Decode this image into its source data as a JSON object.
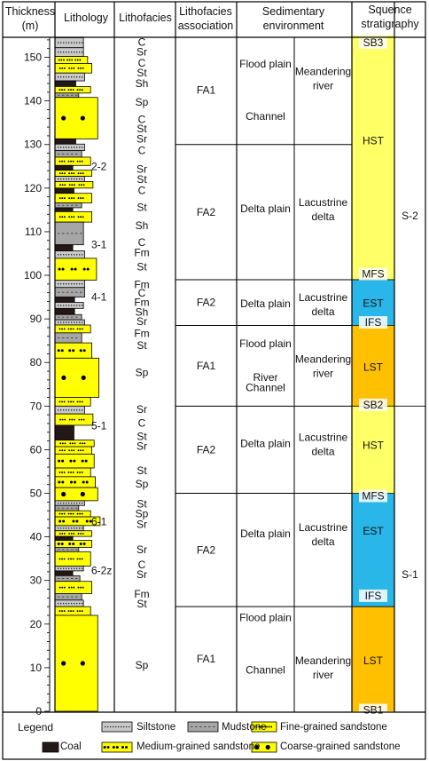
{
  "headers": {
    "thickness": [
      "Thickness",
      "(m)"
    ],
    "lithology": "Lithology",
    "lithofacies": "Lithofacies",
    "association": [
      "Lithofacies",
      "association"
    ],
    "environment": [
      "Sedimentary",
      "environment"
    ],
    "sequence": [
      "Squence",
      "stratigraphy"
    ]
  },
  "axis": {
    "min": 0,
    "max": 155,
    "major_ticks": [
      0,
      10,
      20,
      30,
      40,
      50,
      60,
      70,
      80,
      90,
      100,
      110,
      120,
      130,
      140,
      150
    ]
  },
  "colors": {
    "sand": "#ffff00",
    "hst": "#ffff66",
    "est": "#29b6e8",
    "lst": "#ffc000",
    "mud": "#a6a6a6",
    "silt": "#c8c8c8",
    "coal": "#231815"
  },
  "lithology_beds": [
    {
      "top": 154.5,
      "bot": 152.2,
      "type": "silt",
      "w": 0.48
    },
    {
      "top": 152.2,
      "bot": 150.2,
      "type": "silt",
      "w": 0.48
    },
    {
      "top": 150.2,
      "bot": 148.6,
      "type": "fine",
      "w": 0.55
    },
    {
      "top": 148.6,
      "bot": 146.4,
      "type": "fine",
      "w": 0.62
    },
    {
      "top": 146.4,
      "bot": 144.6,
      "type": "silt",
      "w": 0.5
    },
    {
      "top": 144.6,
      "bot": 143.3,
      "type": "coal",
      "w": 0.35
    },
    {
      "top": 143.3,
      "bot": 141.8,
      "type": "fine",
      "w": 0.6
    },
    {
      "top": 141.8,
      "bot": 140.8,
      "type": "mud",
      "w": 0.4
    },
    {
      "top": 140.8,
      "bot": 131.3,
      "type": "coarse",
      "w": 0.72
    },
    {
      "top": 131.3,
      "bot": 130.1,
      "type": "coal",
      "w": 0.35
    },
    {
      "top": 130.1,
      "bot": 128.6,
      "type": "silt",
      "w": 0.5
    },
    {
      "top": 128.6,
      "bot": 127.1,
      "type": "mud",
      "w": 0.45
    },
    {
      "top": 127.1,
      "bot": 125.2,
      "type": "fine",
      "w": 0.6
    },
    {
      "top": 125.2,
      "bot": 124.1,
      "type": "coal",
      "w": 0.3
    },
    {
      "top": 124.1,
      "bot": 122.7,
      "type": "fine",
      "w": 0.62
    },
    {
      "top": 122.7,
      "bot": 121.5,
      "type": "silt",
      "w": 0.5
    },
    {
      "top": 121.5,
      "bot": 120.0,
      "type": "fine",
      "w": 0.64
    },
    {
      "top": 120.0,
      "bot": 118.8,
      "type": "coal",
      "w": 0.32
    },
    {
      "top": 118.8,
      "bot": 116.6,
      "type": "fine",
      "w": 0.62
    },
    {
      "top": 116.6,
      "bot": 115.5,
      "type": "mud",
      "w": 0.45
    },
    {
      "top": 115.5,
      "bot": 114.6,
      "type": "coal",
      "w": 0.3
    },
    {
      "top": 114.6,
      "bot": 112.2,
      "type": "fine",
      "w": 0.62
    },
    {
      "top": 112.2,
      "bot": 107.0,
      "type": "mud",
      "w": 0.48
    },
    {
      "top": 107.0,
      "bot": 105.6,
      "type": "coal",
      "w": 0.3
    },
    {
      "top": 105.6,
      "bot": 103.9,
      "type": "silt",
      "w": 0.5
    },
    {
      "top": 103.9,
      "bot": 98.9,
      "type": "medium",
      "w": 0.7
    },
    {
      "top": 98.9,
      "bot": 97.2,
      "type": "silt",
      "w": 0.5
    },
    {
      "top": 97.2,
      "bot": 95.0,
      "type": "mud",
      "w": 0.5
    },
    {
      "top": 95.0,
      "bot": 93.8,
      "type": "coal",
      "w": 0.33
    },
    {
      "top": 93.8,
      "bot": 92.4,
      "type": "silt",
      "w": 0.48
    },
    {
      "top": 92.4,
      "bot": 91.0,
      "type": "coal",
      "w": 0.33
    },
    {
      "top": 91.0,
      "bot": 89.8,
      "type": "mud",
      "w": 0.45
    },
    {
      "top": 89.8,
      "bot": 88.6,
      "type": "silt",
      "w": 0.5
    },
    {
      "top": 88.6,
      "bot": 86.8,
      "type": "fine",
      "w": 0.6
    },
    {
      "top": 86.8,
      "bot": 84.5,
      "type": "mud",
      "w": 0.45
    },
    {
      "top": 84.5,
      "bot": 81.0,
      "type": "medium",
      "w": 0.62
    },
    {
      "top": 81.0,
      "bot": 72.0,
      "type": "coarse",
      "w": 0.74
    },
    {
      "top": 72.0,
      "bot": 70.0,
      "type": "fine",
      "w": 0.6
    },
    {
      "top": 70.0,
      "bot": 68.2,
      "type": "silt",
      "w": 0.5
    },
    {
      "top": 68.2,
      "bot": 65.6,
      "type": "fine",
      "w": 0.64
    },
    {
      "top": 65.6,
      "bot": 62.2,
      "type": "coal",
      "w": 0.32
    },
    {
      "top": 62.2,
      "bot": 60.7,
      "type": "fine",
      "w": 0.66
    },
    {
      "top": 60.7,
      "bot": 59.0,
      "type": "fine",
      "w": 0.62
    },
    {
      "top": 59.0,
      "bot": 55.8,
      "type": "medium",
      "w": 0.66
    },
    {
      "top": 55.8,
      "bot": 53.8,
      "type": "fine",
      "w": 0.6
    },
    {
      "top": 53.8,
      "bot": 51.3,
      "type": "medium",
      "w": 0.68
    },
    {
      "top": 51.3,
      "bot": 48.3,
      "type": "coarse",
      "w": 0.72
    },
    {
      "top": 48.3,
      "bot": 47.2,
      "type": "silt",
      "w": 0.5
    },
    {
      "top": 47.2,
      "bot": 46.0,
      "type": "mud",
      "w": 0.4
    },
    {
      "top": 46.0,
      "bot": 44.6,
      "type": "fine",
      "w": 0.6
    },
    {
      "top": 44.6,
      "bot": 42.6,
      "type": "medium",
      "w": 0.76
    },
    {
      "top": 42.6,
      "bot": 41.4,
      "type": "silt",
      "w": 0.48
    },
    {
      "top": 41.4,
      "bot": 40.1,
      "type": "fine",
      "w": 0.62
    },
    {
      "top": 40.1,
      "bot": 39.2,
      "type": "coal",
      "w": 0.3
    },
    {
      "top": 39.2,
      "bot": 37.6,
      "type": "medium",
      "w": 0.62
    },
    {
      "top": 37.6,
      "bot": 36.6,
      "type": "mud",
      "w": 0.4
    },
    {
      "top": 36.6,
      "bot": 33.3,
      "type": "fine",
      "w": 0.6
    },
    {
      "top": 33.3,
      "bot": 32.2,
      "type": "silt",
      "w": 0.48
    },
    {
      "top": 32.2,
      "bot": 31.1,
      "type": "coal",
      "w": 0.3
    },
    {
      "top": 31.1,
      "bot": 29.8,
      "type": "mud",
      "w": 0.42
    },
    {
      "top": 29.8,
      "bot": 27.0,
      "type": "fine",
      "w": 0.62
    },
    {
      "top": 27.0,
      "bot": 25.5,
      "type": "mud",
      "w": 0.45
    },
    {
      "top": 25.5,
      "bot": 24.0,
      "type": "silt",
      "w": 0.48
    },
    {
      "top": 24.0,
      "bot": 22.0,
      "type": "fine",
      "w": 0.6
    },
    {
      "top": 22.0,
      "bot": 0.0,
      "type": "coarse",
      "w": 0.72
    }
  ],
  "sample_labels": [
    {
      "text": "2-2",
      "at": 125.0
    },
    {
      "text": "3-1",
      "at": 107.0
    },
    {
      "text": "4-1",
      "at": 95.0
    },
    {
      "text": "5-1",
      "at": 65.5
    },
    {
      "text": "6-1",
      "at": 43.5
    },
    {
      "text": "6-2z",
      "at": 32.3
    }
  ],
  "lithofacies": [
    {
      "text": "C",
      "at": 153.5
    },
    {
      "text": "Sr",
      "at": 151.2
    },
    {
      "text": "C",
      "at": 148.7
    },
    {
      "text": "St",
      "at": 146.4
    },
    {
      "text": "Sh",
      "at": 144.0
    },
    {
      "text": "Sp",
      "at": 139.7
    },
    {
      "text": "C",
      "at": 135.8
    },
    {
      "text": "St",
      "at": 133.6
    },
    {
      "text": "Sr",
      "at": 131.3
    },
    {
      "text": "C",
      "at": 128.6
    },
    {
      "text": "Sr",
      "at": 124.3
    },
    {
      "text": "St",
      "at": 122.0
    },
    {
      "text": "C",
      "at": 119.5
    },
    {
      "text": "St",
      "at": 115.6
    },
    {
      "text": "Sh",
      "at": 111.4
    },
    {
      "text": "C",
      "at": 107.5
    },
    {
      "text": "Fm",
      "at": 105.2
    },
    {
      "text": "St",
      "at": 101.9
    },
    {
      "text": "Fm",
      "at": 97.9
    },
    {
      "text": "C",
      "at": 95.9
    },
    {
      "text": "Fm",
      "at": 93.8
    },
    {
      "text": "Sh",
      "at": 91.6
    },
    {
      "text": "Sr",
      "at": 89.4
    },
    {
      "text": "Fm",
      "at": 86.7
    },
    {
      "text": "St",
      "at": 83.9
    },
    {
      "text": "Sp",
      "at": 77.7
    },
    {
      "text": "Sr",
      "at": 69.3
    },
    {
      "text": "C",
      "at": 66.1
    },
    {
      "text": "St",
      "at": 63.0
    },
    {
      "text": "Sr",
      "at": 60.8
    },
    {
      "text": "St",
      "at": 55.2
    },
    {
      "text": "Sp",
      "at": 52.1
    },
    {
      "text": "St",
      "at": 47.6
    },
    {
      "text": "Sp",
      "at": 45.3
    },
    {
      "text": "Sr",
      "at": 42.9
    },
    {
      "text": "Sr",
      "at": 37.1
    },
    {
      "text": "C",
      "at": 33.6
    },
    {
      "text": "Sr",
      "at": 31.4
    },
    {
      "text": "Fm",
      "at": 26.9
    },
    {
      "text": "St",
      "at": 24.6
    },
    {
      "text": "Sp",
      "at": 10.6
    }
  ],
  "associations": [
    {
      "top": 155,
      "bot": 130,
      "fa": "FA1",
      "env": [
        {
          "text": "Flood plain",
          "at": 148.5
        },
        {
          "text": "Channel",
          "at": 136.5
        }
      ],
      "env2": [
        "Meandering",
        "river"
      ],
      "env2_at": 145.3
    },
    {
      "top": 130,
      "bot": 99,
      "fa": "FA2",
      "env": [
        {
          "text": "Delta plain",
          "at": 115.3
        }
      ],
      "env2": [
        "Lacustrine",
        "delta"
      ],
      "env2_at": 115.3
    },
    {
      "top": 99,
      "bot": 88.5,
      "fa": "FA2",
      "env": [
        {
          "text": "Delta plain",
          "at": 93.5
        }
      ],
      "env2": [
        "Lacustrine",
        "delta"
      ],
      "env2_at": 93.5
    },
    {
      "top": 88.5,
      "bot": 70,
      "fa": "FA1",
      "env": [
        {
          "text": "Flood plain",
          "at": 84.3
        },
        {
          "text": "River",
          "at": 76.6
        },
        {
          "text": "Channel",
          "at": 74.2
        }
      ],
      "env2": [
        "Meandering",
        "river"
      ],
      "env2_at": 79.3
    },
    {
      "top": 70,
      "bot": 50,
      "fa": "FA2",
      "env": [
        {
          "text": "Delta plain",
          "at": 61.4
        }
      ],
      "env2": [
        "Lacustrine",
        "delta"
      ],
      "env2_at": 61.4
    },
    {
      "top": 50,
      "bot": 24,
      "fa": "FA2",
      "env": [
        {
          "text": "Delta plain",
          "at": 40.7
        }
      ],
      "env2": [
        "Lacustrine",
        "delta"
      ],
      "env2_at": 40.7
    },
    {
      "top": 24,
      "bot": 0,
      "fa": "FA1",
      "env": [
        {
          "text": "Flood plain",
          "at": 21.5
        },
        {
          "text": "Channel",
          "at": 9.5
        }
      ],
      "env2": [
        "Meandering",
        "river"
      ],
      "env2_at": 10.2
    }
  ],
  "systems_tracts": [
    {
      "top": 155,
      "bot": 99,
      "color": "hst",
      "label": "HST",
      "label_at": 130.9
    },
    {
      "top": 99,
      "bot": 88.5,
      "color": "est",
      "label": "EST",
      "label_at": 93.6
    },
    {
      "top": 88.5,
      "bot": 70,
      "color": "lst",
      "label": "LST",
      "label_at": 78.9
    },
    {
      "top": 70,
      "bot": 50,
      "color": "hst",
      "label": "HST",
      "label_at": 61.0
    },
    {
      "top": 50,
      "bot": 24,
      "color": "est",
      "label": "EST",
      "label_at": 41.3
    },
    {
      "top": 24,
      "bot": 0,
      "color": "lst",
      "label": "LST",
      "label_at": 11.6
    }
  ],
  "surfaces": [
    {
      "text": "SB3",
      "at": 153.4
    },
    {
      "text": "MFS",
      "at": 100.3
    },
    {
      "text": "IFS",
      "at": 89.2
    },
    {
      "text": "SB2",
      "at": 70.3
    },
    {
      "text": "MFS",
      "at": 49.4
    },
    {
      "text": "IFS",
      "at": 26.5
    },
    {
      "text": "SB1",
      "at": 0.3
    }
  ],
  "sequences": [
    {
      "label": "S-2",
      "at": 113.7,
      "top": 155,
      "bot": 70
    },
    {
      "label": "S-1",
      "at": 31.4,
      "top": 70,
      "bot": 0
    }
  ],
  "legend": {
    "title": "Legend",
    "items": [
      {
        "key": "silt",
        "label": "Siltstone"
      },
      {
        "key": "mud",
        "label": "Mudstone"
      },
      {
        "key": "fine",
        "label": "Fine-grained sandstone"
      },
      {
        "key": "coal",
        "label": "Coal"
      },
      {
        "key": "medium",
        "label": "Medium-grained sandstone"
      },
      {
        "key": "coarse",
        "label": "Coarse-grained sandstone"
      }
    ]
  }
}
